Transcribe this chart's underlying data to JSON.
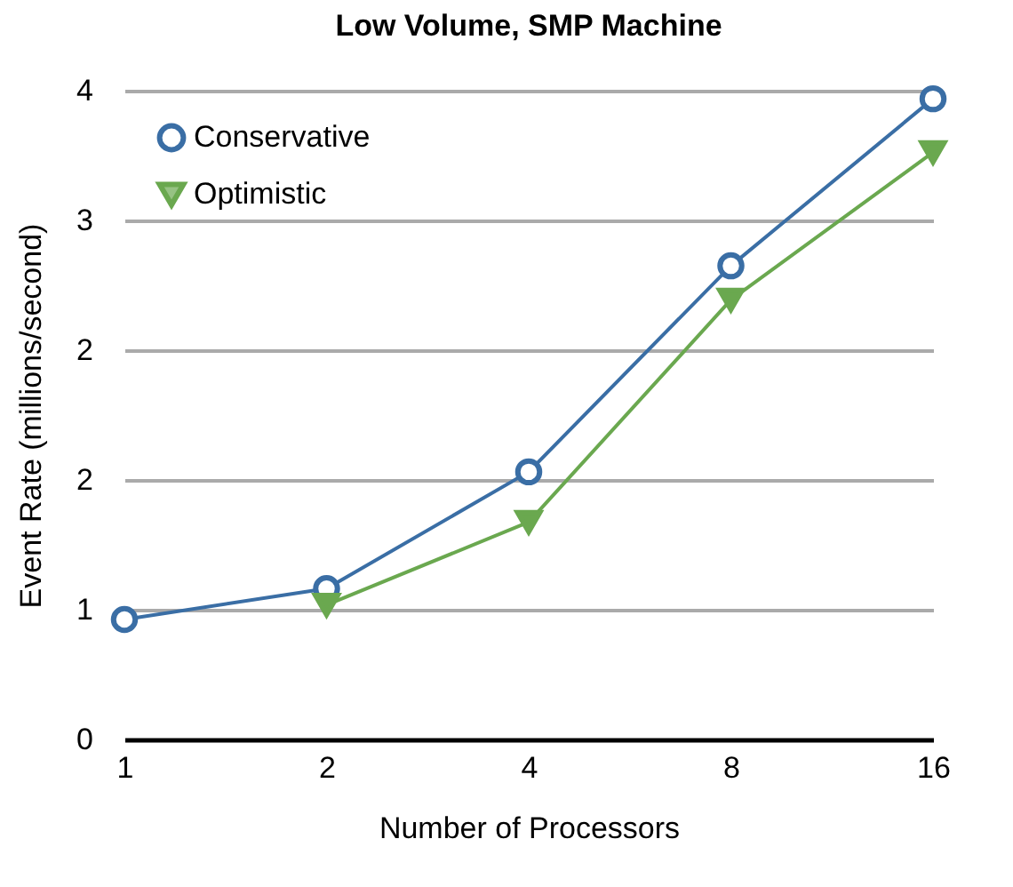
{
  "chart_data": {
    "type": "line",
    "title": "Low Volume, SMP Machine",
    "xlabel": "Number of Processors",
    "ylabel": "Event Rate (millions/second)",
    "categories": [
      "1",
      "2",
      "4",
      "8",
      "16"
    ],
    "series": [
      {
        "name": "Conservative",
        "color": "#3a6ea5",
        "marker": "circle",
        "values": [
          0.74,
          0.93,
          1.65,
          2.92,
          3.95
        ]
      },
      {
        "name": "Optimistic",
        "color": "#6aa84f",
        "marker": "triangle",
        "values": [
          null,
          0.83,
          1.34,
          2.71,
          3.62
        ]
      }
    ],
    "ylim": [
      0,
      4
    ],
    "yticks": [
      0,
      {
        "value": 0.8,
        "label": "1"
      },
      {
        "value": 1.6,
        "label": "2"
      },
      {
        "value": 2.4,
        "label": "2"
      },
      {
        "value": 3.2,
        "label": "3"
      },
      {
        "value": 4,
        "label": "4"
      }
    ],
    "grid": "y",
    "legend": "top left",
    "line_style": "solid"
  }
}
